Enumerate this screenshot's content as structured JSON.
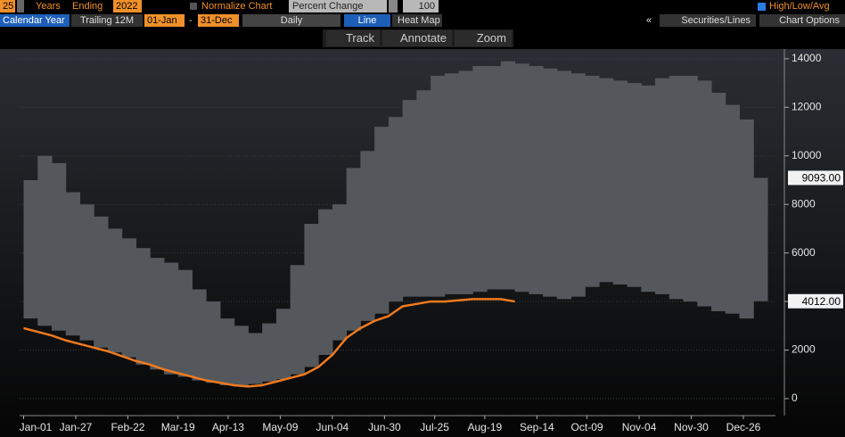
{
  "toolbar": {
    "years_count": "25",
    "years": "Years",
    "ending": "Ending",
    "end_year": "2022",
    "normalize": "Normalize Chart",
    "mode": "Percent Change",
    "base": "100",
    "high_low_avg": "High/Low/Avg",
    "calendar_year": "Calendar Year",
    "trailing": "Trailing 12M",
    "start": "01-Jan",
    "dash": "-",
    "end": "31-Dec",
    "frequency": "Daily",
    "line": "Line",
    "heat_map": "Heat Map",
    "collapse": "«",
    "securities": "Securities/Lines",
    "options": "Chart Options",
    "track": "Track",
    "annotate": "Annotate",
    "zoom": "Zoom"
  },
  "chart_data": {
    "type": "band-line",
    "x": [
      0,
      7,
      14,
      21,
      28,
      35,
      42,
      49,
      56,
      63,
      70,
      77,
      84,
      91,
      98,
      105,
      112,
      119,
      126,
      133,
      140,
      147,
      154,
      161,
      168,
      175,
      182,
      189,
      196,
      203,
      210,
      217,
      224,
      231,
      238,
      245,
      252,
      259,
      266,
      273,
      280,
      287,
      294,
      301,
      308,
      315,
      322,
      329,
      336,
      343,
      350,
      357,
      364
    ],
    "xlim": [
      -2,
      375
    ],
    "xticks": [
      {
        "value": 0,
        "label": "Jan-01"
      },
      {
        "value": 26,
        "label": "Jan-27"
      },
      {
        "value": 52,
        "label": "Feb-22"
      },
      {
        "value": 77,
        "label": "Mar-19"
      },
      {
        "value": 102,
        "label": "Apr-13"
      },
      {
        "value": 128,
        "label": "May-09"
      },
      {
        "value": 154,
        "label": "Jun-04"
      },
      {
        "value": 180,
        "label": "Jun-30"
      },
      {
        "value": 205,
        "label": "Jul-25"
      },
      {
        "value": 230,
        "label": "Aug-19"
      },
      {
        "value": 256,
        "label": "Sep-14"
      },
      {
        "value": 281,
        "label": "Oct-09"
      },
      {
        "value": 307,
        "label": "Nov-04"
      },
      {
        "value": 333,
        "label": "Nov-30"
      },
      {
        "value": 359,
        "label": "Dec-26"
      }
    ],
    "ylim": [
      -700,
      14400
    ],
    "yticks": [
      0,
      2000,
      4000,
      6000,
      8000,
      10000,
      12000,
      14000
    ],
    "grid": true,
    "series": [
      {
        "role": "high",
        "color": "#54585c",
        "last_label": "9093.00",
        "values": [
          9000,
          10000,
          9700,
          8500,
          8000,
          7500,
          7000,
          6600,
          6200,
          5800,
          5600,
          5300,
          4500,
          4000,
          3300,
          3000,
          2700,
          3100,
          3700,
          5500,
          7200,
          7800,
          8000,
          9500,
          10200,
          11200,
          11600,
          12300,
          12700,
          13300,
          13400,
          13500,
          13700,
          13700,
          13900,
          13800,
          13700,
          13600,
          13500,
          13400,
          13300,
          13200,
          13100,
          13000,
          12900,
          13200,
          13300,
          13300,
          13100,
          12600,
          12100,
          11500,
          9093
        ]
      },
      {
        "role": "low",
        "color": "#54585c",
        "last_label": "4012.00",
        "values": [
          3300,
          3000,
          2800,
          2600,
          2400,
          2100,
          1900,
          1700,
          1400,
          1200,
          1000,
          900,
          750,
          650,
          550,
          500,
          600,
          700,
          800,
          1000,
          1300,
          1800,
          2400,
          2800,
          3200,
          3500,
          4000,
          4200,
          4200,
          4200,
          4300,
          4300,
          4400,
          4500,
          4500,
          4400,
          4300,
          4200,
          4100,
          4200,
          4600,
          4800,
          4700,
          4600,
          4400,
          4300,
          4100,
          4000,
          3800,
          3600,
          3500,
          3300,
          4012
        ]
      },
      {
        "role": "avg",
        "color": "#f07a1f",
        "values": [
          2900,
          2750,
          2600,
          2400,
          2250,
          2100,
          1950,
          1750,
          1550,
          1400,
          1200,
          1050,
          900,
          750,
          650,
          550,
          500,
          550,
          700,
          850,
          1000,
          1300,
          1800,
          2500,
          2900,
          3200,
          3400,
          3800,
          3900,
          4000,
          4000,
          4050,
          4100,
          4100,
          4100,
          4000,
          null,
          null,
          null,
          null,
          null,
          null,
          null,
          null,
          null,
          null,
          null,
          null,
          null,
          null,
          null,
          null,
          null
        ]
      }
    ]
  }
}
